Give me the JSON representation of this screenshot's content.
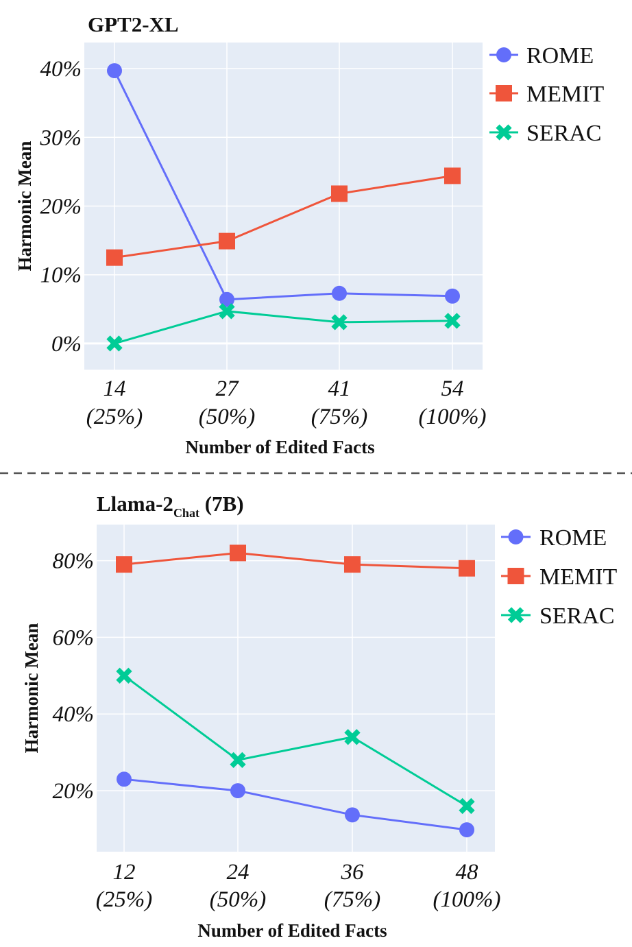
{
  "colors": {
    "rome": "#636efa",
    "memit": "#ef553b",
    "serac": "#00cc96",
    "plot_bg": "#e5ecf6",
    "grid": "#ffffff",
    "separator": "#555555"
  },
  "chart_data": [
    {
      "type": "line",
      "title": "GPT2-XL",
      "title_subscript": "",
      "title_suffix": "",
      "xlabel": "Number of Edited Facts",
      "ylabel": "Harmonic Mean",
      "categories": [
        {
          "n": "14",
          "pct": "(25%)"
        },
        {
          "n": "27",
          "pct": "(50%)"
        },
        {
          "n": "41",
          "pct": "(75%)"
        },
        {
          "n": "54",
          "pct": "(100%)"
        }
      ],
      "y_ticks": [
        "0%",
        "10%",
        "20%",
        "30%",
        "40%"
      ],
      "y_tick_values": [
        0,
        10,
        20,
        30,
        40
      ],
      "ylim": [
        -3.8,
        43.8
      ],
      "grid": true,
      "legend_position": "top-right",
      "series": [
        {
          "name": "ROME",
          "marker": "circle",
          "values": [
            39.7,
            6.4,
            7.3,
            6.9
          ]
        },
        {
          "name": "MEMIT",
          "marker": "square",
          "values": [
            12.5,
            14.9,
            21.8,
            24.4
          ]
        },
        {
          "name": "SERAC",
          "marker": "x",
          "values": [
            0.0,
            4.7,
            3.1,
            3.3
          ]
        }
      ]
    },
    {
      "type": "line",
      "title": "Llama-2",
      "title_subscript": "Chat",
      "title_suffix": "(7B)",
      "xlabel": "Number of Edited Facts",
      "ylabel": "Harmonic Mean",
      "categories": [
        {
          "n": "12",
          "pct": "(25%)"
        },
        {
          "n": "24",
          "pct": "(50%)"
        },
        {
          "n": "36",
          "pct": "(75%)"
        },
        {
          "n": "48",
          "pct": "(100%)"
        }
      ],
      "y_ticks": [
        "20%",
        "40%",
        "60%",
        "80%"
      ],
      "y_tick_values": [
        20,
        40,
        60,
        80
      ],
      "ylim": [
        4.1,
        89.4
      ],
      "grid": true,
      "legend_position": "top-right",
      "series": [
        {
          "name": "ROME",
          "marker": "circle",
          "values": [
            23.0,
            20.0,
            13.7,
            9.8
          ]
        },
        {
          "name": "MEMIT",
          "marker": "square",
          "values": [
            79.0,
            82.0,
            79.0,
            78.0
          ]
        },
        {
          "name": "SERAC",
          "marker": "x",
          "values": [
            50.0,
            28.0,
            34.0,
            16.0
          ]
        }
      ]
    }
  ]
}
